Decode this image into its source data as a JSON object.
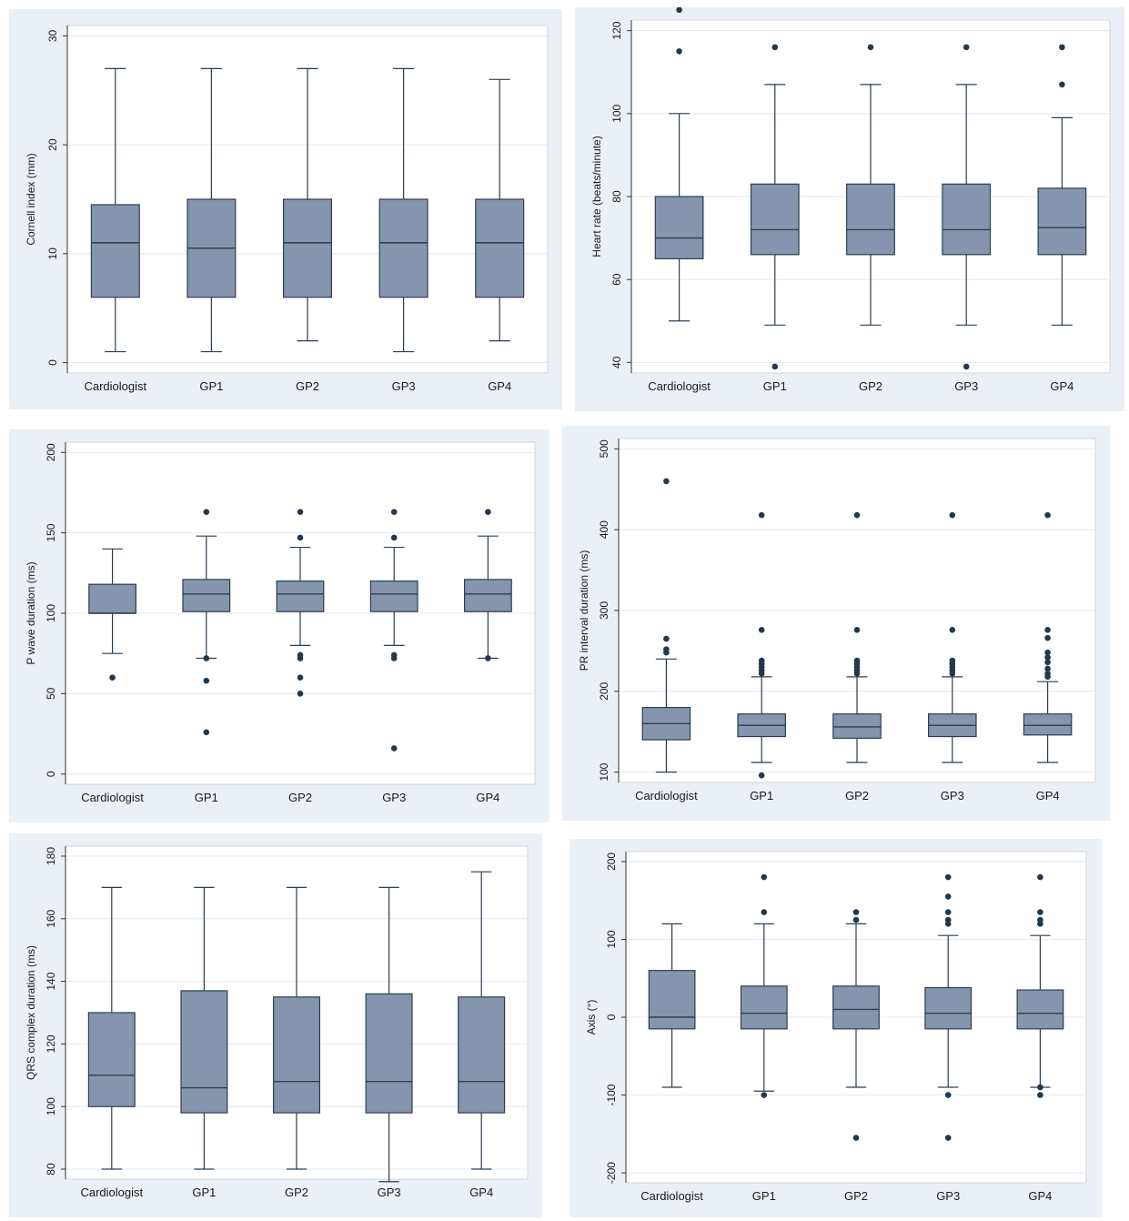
{
  "chart_data": [
    {
      "type": "box",
      "ylabel": "Cornell index (mm)",
      "ylim": [
        0,
        30
      ],
      "yticks": [
        0,
        10,
        20,
        30
      ],
      "categories": [
        "Cardiologist",
        "GP1",
        "GP2",
        "GP3",
        "GP4"
      ],
      "box_color": "#8495ad",
      "boxes": [
        {
          "whisker_low": 1,
          "q1": 6,
          "median": 11,
          "q3": 14.5,
          "whisker_high": 27,
          "outliers": []
        },
        {
          "whisker_low": 1,
          "q1": 6,
          "median": 10.5,
          "q3": 15,
          "whisker_high": 27,
          "outliers": []
        },
        {
          "whisker_low": 2,
          "q1": 6,
          "median": 11,
          "q3": 15,
          "whisker_high": 27,
          "outliers": []
        },
        {
          "whisker_low": 1,
          "q1": 6,
          "median": 11,
          "q3": 15,
          "whisker_high": 27,
          "outliers": []
        },
        {
          "whisker_low": 2,
          "q1": 6,
          "median": 11,
          "q3": 15,
          "whisker_high": 26,
          "outliers": []
        }
      ]
    },
    {
      "type": "box",
      "ylabel": "Heart rate (beats/minute)",
      "ylim": [
        40,
        120
      ],
      "yticks": [
        40,
        60,
        80,
        100,
        120
      ],
      "categories": [
        "Cardiologist",
        "GP1",
        "GP2",
        "GP3",
        "GP4"
      ],
      "box_color": "#8495ad",
      "boxes": [
        {
          "whisker_low": 50,
          "q1": 65,
          "median": 70,
          "q3": 80,
          "whisker_high": 100,
          "outliers": [
            115,
            125
          ]
        },
        {
          "whisker_low": 49,
          "q1": 66,
          "median": 72,
          "q3": 83,
          "whisker_high": 107,
          "outliers": [
            39,
            116
          ]
        },
        {
          "whisker_low": 49,
          "q1": 66,
          "median": 72,
          "q3": 83,
          "whisker_high": 107,
          "outliers": [
            116
          ]
        },
        {
          "whisker_low": 49,
          "q1": 66,
          "median": 72,
          "q3": 83,
          "whisker_high": 107,
          "outliers": [
            39,
            116
          ]
        },
        {
          "whisker_low": 49,
          "q1": 66,
          "median": 72.5,
          "q3": 82,
          "whisker_high": 99,
          "outliers": [
            107,
            116
          ]
        }
      ]
    },
    {
      "type": "box",
      "ylabel": "P wave duration (ms)",
      "ylim": [
        0,
        200
      ],
      "yticks": [
        0,
        50,
        100,
        150,
        200
      ],
      "categories": [
        "Cardiologist",
        "GP1",
        "GP2",
        "GP3",
        "GP4"
      ],
      "box_color": "#8495ad",
      "boxes": [
        {
          "whisker_low": 75,
          "q1": 100,
          "median": 100,
          "q3": 118,
          "whisker_high": 140,
          "outliers": [
            60
          ]
        },
        {
          "whisker_low": 72,
          "q1": 101,
          "median": 112,
          "q3": 121,
          "whisker_high": 148,
          "outliers": [
            163,
            72,
            58,
            26
          ]
        },
        {
          "whisker_low": 80,
          "q1": 101,
          "median": 112,
          "q3": 120,
          "whisker_high": 141,
          "outliers": [
            163,
            147,
            74,
            72,
            60,
            50
          ]
        },
        {
          "whisker_low": 80,
          "q1": 101,
          "median": 112,
          "q3": 120,
          "whisker_high": 141,
          "outliers": [
            163,
            147,
            74,
            72,
            16
          ]
        },
        {
          "whisker_low": 72,
          "q1": 101,
          "median": 112,
          "q3": 121,
          "whisker_high": 148,
          "outliers": [
            163,
            72
          ]
        }
      ]
    },
    {
      "type": "box",
      "ylabel": "PR interval duration (ms)",
      "ylim": [
        100,
        500
      ],
      "yticks": [
        100,
        200,
        300,
        400,
        500
      ],
      "categories": [
        "Cardiologist",
        "GP1",
        "GP2",
        "GP3",
        "GP4"
      ],
      "box_color": "#8495ad",
      "boxes": [
        {
          "whisker_low": 100,
          "q1": 140,
          "median": 160,
          "q3": 180,
          "whisker_high": 240,
          "outliers": [
            248,
            252,
            265,
            460
          ]
        },
        {
          "whisker_low": 112,
          "q1": 144,
          "median": 158,
          "q3": 172,
          "whisker_high": 218,
          "outliers": [
            96,
            222,
            226,
            230,
            234,
            238,
            276,
            418
          ]
        },
        {
          "whisker_low": 112,
          "q1": 142,
          "median": 156,
          "q3": 172,
          "whisker_high": 218,
          "outliers": [
            222,
            226,
            230,
            234,
            238,
            276,
            418
          ]
        },
        {
          "whisker_low": 112,
          "q1": 144,
          "median": 158,
          "q3": 172,
          "whisker_high": 218,
          "outliers": [
            222,
            226,
            230,
            234,
            238,
            276,
            418
          ]
        },
        {
          "whisker_low": 112,
          "q1": 146,
          "median": 158,
          "q3": 172,
          "whisker_high": 212,
          "outliers": [
            218,
            222,
            228,
            236,
            242,
            248,
            266,
            276,
            418
          ]
        }
      ]
    },
    {
      "type": "box",
      "ylabel": "QRS complex duration (ms)",
      "ylim": [
        80,
        180
      ],
      "yticks": [
        80,
        100,
        120,
        140,
        160,
        180
      ],
      "categories": [
        "Cardiologist",
        "GP1",
        "GP2",
        "GP3",
        "GP4"
      ],
      "box_color": "#8495ad",
      "boxes": [
        {
          "whisker_low": 80,
          "q1": 100,
          "median": 110,
          "q3": 130,
          "whisker_high": 170,
          "outliers": []
        },
        {
          "whisker_low": 80,
          "q1": 98,
          "median": 106,
          "q3": 137,
          "whisker_high": 170,
          "outliers": []
        },
        {
          "whisker_low": 80,
          "q1": 98,
          "median": 108,
          "q3": 135,
          "whisker_high": 170,
          "outliers": []
        },
        {
          "whisker_low": 76,
          "q1": 98,
          "median": 108,
          "q3": 136,
          "whisker_high": 170,
          "outliers": []
        },
        {
          "whisker_low": 80,
          "q1": 98,
          "median": 108,
          "q3": 135,
          "whisker_high": 175,
          "outliers": []
        }
      ]
    },
    {
      "type": "box",
      "ylabel": "Axis (°)",
      "ylim": [
        -200,
        200
      ],
      "yticks": [
        -200,
        -100,
        0,
        100,
        200
      ],
      "categories": [
        "Cardiologist",
        "GP1",
        "GP2",
        "GP3",
        "GP4"
      ],
      "box_color": "#8495ad",
      "boxes": [
        {
          "whisker_low": -90,
          "q1": -15,
          "median": 0,
          "q3": 60,
          "whisker_high": 120,
          "outliers": []
        },
        {
          "whisker_low": -95,
          "q1": -15,
          "median": 5,
          "q3": 40,
          "whisker_high": 120,
          "outliers": [
            180,
            135,
            -100
          ]
        },
        {
          "whisker_low": -90,
          "q1": -15,
          "median": 10,
          "q3": 40,
          "whisker_high": 120,
          "outliers": [
            135,
            125,
            -155
          ]
        },
        {
          "whisker_low": -90,
          "q1": -15,
          "median": 5,
          "q3": 38,
          "whisker_high": 105,
          "outliers": [
            180,
            155,
            135,
            125,
            120,
            -100,
            -155
          ]
        },
        {
          "whisker_low": -90,
          "q1": -15,
          "median": 5,
          "q3": 35,
          "whisker_high": 105,
          "outliers": [
            180,
            135,
            125,
            120,
            -90,
            -100
          ]
        }
      ]
    }
  ]
}
